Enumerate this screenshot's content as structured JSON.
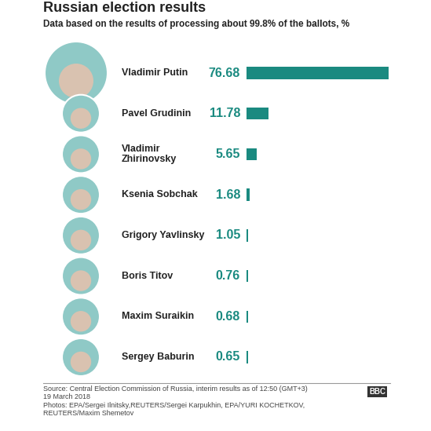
{
  "chart_data": {
    "type": "bar",
    "orientation": "horizontal",
    "title": "Russian election results",
    "subtitle": "Data based on the results of processing about 99.8% of the ballots, %",
    "categories": [
      "Vladimir Putin",
      "Pavel Grudinin",
      "Vladimir Zhirinovsky",
      "Ksenia Sobchak",
      "Grigory Yavlinsky",
      "Boris Titov",
      "Maxim Suraikin",
      "Sergey Baburin"
    ],
    "values": [
      76.68,
      11.78,
      5.65,
      1.68,
      1.05,
      0.76,
      0.68,
      0.65
    ],
    "color": "#1a8a80",
    "data_labels": true,
    "xlim": [
      0,
      76.68
    ],
    "xticks": [],
    "tick_labels": false,
    "grid": false,
    "footer": {
      "source": "Source: Central Election Commission of Russia, interim results as of 12:50 (GMT+3)",
      "date": "19 March 2018",
      "photos": "Photos: EPA/Sergei Ilnitsky,REUTERS/Sergei Karpukhin, EPA/YURI KOCHETKOV, REUTERS/Maxim Shemetov",
      "logo": "BBC"
    }
  }
}
